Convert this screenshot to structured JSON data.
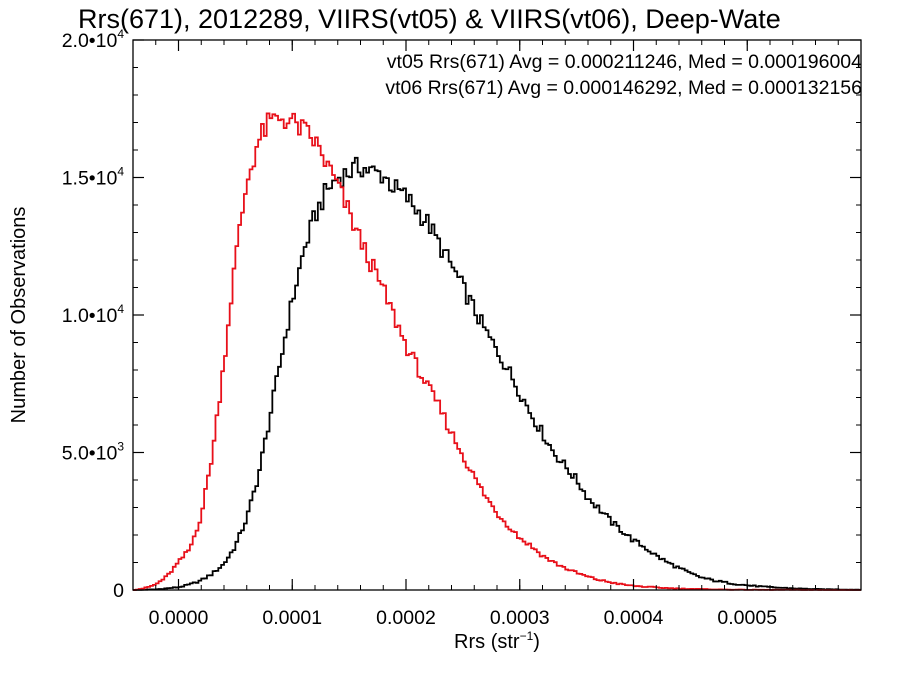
{
  "chart_data": {
    "type": "histogram-step",
    "title": "Rrs(671), 2012289, VIIRS(vt05) & VIIRS(vt06), Deep-Wate",
    "xlabel": {
      "base": "Rrs (str",
      "sup": "−1",
      "tail": ")"
    },
    "ylabel": "Number of Observations",
    "xlim": [
      -4e-05,
      0.0006
    ],
    "ylim": [
      0,
      20000
    ],
    "x_ticks": [
      {
        "value": 0.0,
        "label": "0.0000"
      },
      {
        "value": 0.0001,
        "label": "0.0001"
      },
      {
        "value": 0.0002,
        "label": "0.0002"
      },
      {
        "value": 0.0003,
        "label": "0.0003"
      },
      {
        "value": 0.0004,
        "label": "0.0004"
      },
      {
        "value": 0.0005,
        "label": "0.0005"
      }
    ],
    "y_ticks": [
      {
        "value": 0,
        "base": "0",
        "exp": ""
      },
      {
        "value": 5000,
        "base": "5.0•10",
        "exp": "3"
      },
      {
        "value": 10000,
        "base": "1.0•10",
        "exp": "4"
      },
      {
        "value": 15000,
        "base": "1.5•10",
        "exp": "4"
      },
      {
        "value": 20000,
        "base": "2.0•10",
        "exp": "4"
      }
    ],
    "grid": false,
    "bin_width": 2.5e-06,
    "series": [
      {
        "name": "vt05",
        "color": "#000000",
        "annotation": "vt05 Rrs(671) Avg = 0.000211246, Med = 0.000196004",
        "points": [
          [
            -4e-05,
            0
          ],
          [
            -2e-05,
            20
          ],
          [
            0.0,
            100
          ],
          [
            1e-05,
            200
          ],
          [
            2e-05,
            350
          ],
          [
            3e-05,
            600
          ],
          [
            4e-05,
            950
          ],
          [
            5e-05,
            1600
          ],
          [
            6e-05,
            2600
          ],
          [
            7e-05,
            4100
          ],
          [
            8e-05,
            6200
          ],
          [
            9e-05,
            8400
          ],
          [
            0.0001,
            10500
          ],
          [
            0.00011,
            12300
          ],
          [
            0.00012,
            13600
          ],
          [
            0.00013,
            14500
          ],
          [
            0.00014,
            15000
          ],
          [
            0.00015,
            15200
          ],
          [
            0.00016,
            15400
          ],
          [
            0.00017,
            15200
          ],
          [
            0.00018,
            15100
          ],
          [
            0.00019,
            14600
          ],
          [
            0.0002,
            14300
          ],
          [
            0.00021,
            13800
          ],
          [
            0.00022,
            13300
          ],
          [
            0.00023,
            12500
          ],
          [
            0.00024,
            11800
          ],
          [
            0.00025,
            11000
          ],
          [
            0.00026,
            10200
          ],
          [
            0.00027,
            9400
          ],
          [
            0.00028,
            8700
          ],
          [
            0.00029,
            8000
          ],
          [
            0.0003,
            7200
          ],
          [
            0.00031,
            6400
          ],
          [
            0.00032,
            5700
          ],
          [
            0.00033,
            5000
          ],
          [
            0.00034,
            4500
          ],
          [
            0.00035,
            4000
          ],
          [
            0.00036,
            3350
          ],
          [
            0.00037,
            2950
          ],
          [
            0.00038,
            2500
          ],
          [
            0.00039,
            2150
          ],
          [
            0.0004,
            1800
          ],
          [
            0.00041,
            1550
          ],
          [
            0.00042,
            1250
          ],
          [
            0.00043,
            1000
          ],
          [
            0.00044,
            800
          ],
          [
            0.00045,
            600
          ],
          [
            0.00046,
            450
          ],
          [
            0.00047,
            350
          ],
          [
            0.00048,
            280
          ],
          [
            0.00049,
            220
          ],
          [
            0.0005,
            170
          ],
          [
            0.00052,
            100
          ],
          [
            0.00054,
            60
          ],
          [
            0.00056,
            30
          ],
          [
            0.0006,
            10
          ]
        ]
      },
      {
        "name": "vt06",
        "color": "#e8101a",
        "annotation": "vt06 Rrs(671) Avg = 0.000146292, Med = 0.000132156",
        "points": [
          [
            -4e-05,
            0
          ],
          [
            -3e-05,
            60
          ],
          [
            -2e-05,
            200
          ],
          [
            -1e-05,
            500
          ],
          [
            0.0,
            1000
          ],
          [
            1e-05,
            1500
          ],
          [
            2e-05,
            2700
          ],
          [
            3e-05,
            5000
          ],
          [
            4e-05,
            8300
          ],
          [
            5e-05,
            12000
          ],
          [
            6e-05,
            14800
          ],
          [
            7e-05,
            16300
          ],
          [
            8e-05,
            17000
          ],
          [
            9e-05,
            17200
          ],
          [
            0.0001,
            17000
          ],
          [
            0.00011,
            16700
          ],
          [
            0.00012,
            16300
          ],
          [
            0.00013,
            15500
          ],
          [
            0.00014,
            14700
          ],
          [
            0.00015,
            13700
          ],
          [
            0.00016,
            12700
          ],
          [
            0.00017,
            11800
          ],
          [
            0.00018,
            10900
          ],
          [
            0.00019,
            9900
          ],
          [
            0.0002,
            8900
          ],
          [
            0.00021,
            8100
          ],
          [
            0.00022,
            7300
          ],
          [
            0.00023,
            6600
          ],
          [
            0.00024,
            5700
          ],
          [
            0.00025,
            4900
          ],
          [
            0.00026,
            4100
          ],
          [
            0.00027,
            3400
          ],
          [
            0.00028,
            2800
          ],
          [
            0.00029,
            2350
          ],
          [
            0.0003,
            1900
          ],
          [
            0.00031,
            1600
          ],
          [
            0.00032,
            1250
          ],
          [
            0.00033,
            1000
          ],
          [
            0.00034,
            800
          ],
          [
            0.00035,
            620
          ],
          [
            0.00036,
            480
          ],
          [
            0.00037,
            360
          ],
          [
            0.00038,
            280
          ],
          [
            0.00039,
            200
          ],
          [
            0.0004,
            150
          ],
          [
            0.00042,
            90
          ],
          [
            0.00044,
            50
          ],
          [
            0.00046,
            30
          ],
          [
            0.00048,
            15
          ],
          [
            0.0005,
            8
          ],
          [
            0.0006,
            0
          ]
        ]
      }
    ]
  }
}
